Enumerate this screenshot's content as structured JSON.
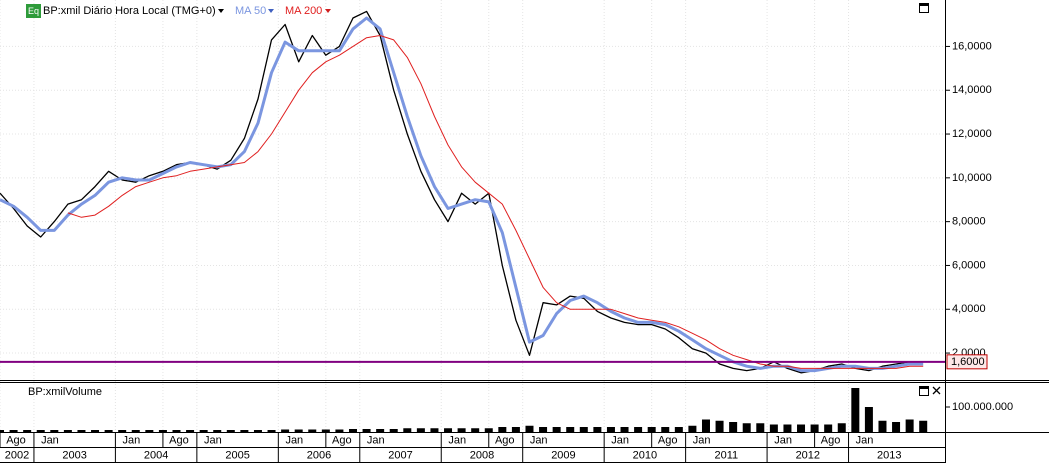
{
  "chart_data": {
    "type": "line",
    "title": "BP:xmil Diário Hora Local (TMG+0)",
    "badge": "Eq",
    "x": [
      "2002-08",
      "2002-10",
      "2002-12",
      "2003-02",
      "2003-04",
      "2003-06",
      "2003-08",
      "2003-10",
      "2003-12",
      "2004-02",
      "2004-04",
      "2004-06",
      "2004-08",
      "2004-10",
      "2004-12",
      "2005-02",
      "2005-04",
      "2005-06",
      "2005-08",
      "2005-10",
      "2005-12",
      "2006-02",
      "2006-04",
      "2006-06",
      "2006-08",
      "2006-10",
      "2006-12",
      "2007-02",
      "2007-04",
      "2007-06",
      "2007-08",
      "2007-10",
      "2007-12",
      "2008-02",
      "2008-04",
      "2008-06",
      "2008-08",
      "2008-10",
      "2008-12",
      "2009-02",
      "2009-04",
      "2009-06",
      "2009-08",
      "2009-10",
      "2009-12",
      "2010-02",
      "2010-04",
      "2010-06",
      "2010-08",
      "2010-10",
      "2010-12",
      "2011-02",
      "2011-04",
      "2011-06",
      "2011-08",
      "2011-10",
      "2011-12",
      "2012-02",
      "2012-04",
      "2012-06",
      "2012-08",
      "2012-10",
      "2012-12",
      "2013-02",
      "2013-04",
      "2013-06",
      "2013-08",
      "2013-10",
      "2013-12"
    ],
    "xlim": [
      "2002-08",
      "2014-01"
    ],
    "xticks": [
      {
        "value": "2002-08",
        "label": "Ago"
      },
      {
        "value": "2003-01",
        "label": "Jan"
      },
      {
        "value": "2004-01",
        "label": "Jan"
      },
      {
        "value": "2004-08",
        "label": "Ago"
      },
      {
        "value": "2005-01",
        "label": "Jan"
      },
      {
        "value": "2006-01",
        "label": "Jan"
      },
      {
        "value": "2006-08",
        "label": "Ago"
      },
      {
        "value": "2007-01",
        "label": "Jan"
      },
      {
        "value": "2008-01",
        "label": "Jan"
      },
      {
        "value": "2008-08",
        "label": "Ago"
      },
      {
        "value": "2009-01",
        "label": "Jan"
      },
      {
        "value": "2010-01",
        "label": "Jan"
      },
      {
        "value": "2010-08",
        "label": "Ago"
      },
      {
        "value": "2011-01",
        "label": "Jan"
      },
      {
        "value": "2012-01",
        "label": "Jan"
      },
      {
        "value": "2012-08",
        "label": "Ago"
      },
      {
        "value": "2013-01",
        "label": "Jan"
      }
    ],
    "year_labels": [
      "2002",
      "2003",
      "2004",
      "2005",
      "2006",
      "2007",
      "2008",
      "2009",
      "2010",
      "2011",
      "2012",
      "2013"
    ],
    "ylim": [
      0.77,
      18.12
    ],
    "yticks": [
      {
        "value": 2,
        "label": "2,0000"
      },
      {
        "value": 4,
        "label": "4,0000"
      },
      {
        "value": 6,
        "label": "6,0000"
      },
      {
        "value": 8,
        "label": "8,0000"
      },
      {
        "value": 10,
        "label": "10,0000"
      },
      {
        "value": 12,
        "label": "12,0000"
      },
      {
        "value": 14,
        "label": "14,0000"
      },
      {
        "value": 16,
        "label": "16,0000"
      }
    ],
    "grid": true,
    "series": [
      {
        "color": "#000000",
        "values": [
          9.3,
          8.6,
          7.8,
          7.3,
          8.0,
          8.8,
          9.0,
          9.6,
          10.3,
          9.9,
          9.8,
          10.1,
          10.3,
          10.6,
          10.7,
          10.6,
          10.4,
          10.8,
          11.8,
          13.6,
          16.3,
          17.0,
          15.3,
          16.5,
          15.6,
          16.0,
          17.3,
          17.6,
          16.5,
          14.0,
          12.0,
          10.3,
          9.0,
          8.0,
          9.3,
          8.8,
          9.3,
          6.0,
          3.5,
          1.9,
          4.3,
          4.2,
          4.6,
          4.5,
          3.9,
          3.6,
          3.4,
          3.3,
          3.3,
          3.1,
          2.7,
          2.2,
          2.0,
          1.5,
          1.3,
          1.2,
          1.3,
          1.6,
          1.3,
          1.1,
          1.2,
          1.4,
          1.5,
          1.3,
          1.2,
          1.4,
          1.5,
          1.6,
          1.6
        ]
      },
      {
        "name": "MA 50",
        "color": "#7b96e0",
        "values": [
          9.0,
          8.7,
          8.2,
          7.6,
          7.6,
          8.3,
          8.8,
          9.2,
          9.8,
          10.0,
          9.9,
          9.9,
          10.2,
          10.5,
          10.7,
          10.6,
          10.5,
          10.6,
          11.2,
          12.5,
          14.8,
          16.2,
          15.8,
          15.8,
          15.8,
          15.8,
          16.8,
          17.3,
          16.8,
          14.8,
          12.8,
          11.0,
          9.6,
          8.6,
          8.8,
          9.0,
          8.9,
          7.5,
          5.0,
          2.5,
          2.8,
          3.8,
          4.4,
          4.6,
          4.3,
          3.9,
          3.6,
          3.4,
          3.4,
          3.3,
          3.0,
          2.6,
          2.2,
          1.9,
          1.6,
          1.4,
          1.3,
          1.4,
          1.4,
          1.2,
          1.2,
          1.3,
          1.4,
          1.4,
          1.3,
          1.3,
          1.4,
          1.5,
          1.5
        ]
      },
      {
        "name": "MA 200",
        "color": "#e02020",
        "values": [
          null,
          null,
          null,
          null,
          null,
          8.4,
          8.2,
          8.3,
          8.7,
          9.2,
          9.6,
          9.8,
          10.0,
          10.1,
          10.3,
          10.4,
          10.5,
          10.6,
          10.7,
          11.2,
          12.0,
          13.0,
          14.0,
          14.8,
          15.3,
          15.6,
          16.0,
          16.4,
          16.5,
          16.3,
          15.5,
          14.3,
          12.8,
          11.5,
          10.5,
          9.8,
          9.3,
          8.8,
          7.6,
          6.3,
          5.0,
          4.3,
          4.0,
          4.0,
          4.0,
          4.0,
          3.8,
          3.6,
          3.5,
          3.4,
          3.2,
          2.9,
          2.6,
          2.2,
          1.9,
          1.7,
          1.5,
          1.4,
          1.4,
          1.3,
          1.3,
          1.3,
          1.3,
          1.3,
          1.3,
          1.3,
          1.3,
          1.4,
          1.4
        ]
      }
    ],
    "level": {
      "value": 1.6,
      "label": "1,6000",
      "color": "#800080"
    },
    "volume": {
      "title": "BP:xmilVolume",
      "color": "#000000",
      "ylim": [
        0,
        200000000
      ],
      "yticks": [
        {
          "value": 100000000,
          "label": "100.000.000"
        }
      ],
      "values": [
        8000000,
        8000000,
        8000000,
        8000000,
        8000000,
        8000000,
        8000000,
        8000000,
        8000000,
        8000000,
        8000000,
        8000000,
        8000000,
        8000000,
        8000000,
        8000000,
        8000000,
        8000000,
        8000000,
        8000000,
        8000000,
        10000000,
        10000000,
        10000000,
        10000000,
        10000000,
        12000000,
        12000000,
        12000000,
        12000000,
        15000000,
        15000000,
        15000000,
        15000000,
        15000000,
        15000000,
        15000000,
        20000000,
        20000000,
        25000000,
        20000000,
        20000000,
        20000000,
        20000000,
        20000000,
        20000000,
        20000000,
        20000000,
        20000000,
        20000000,
        20000000,
        25000000,
        50000000,
        45000000,
        40000000,
        35000000,
        35000000,
        30000000,
        30000000,
        30000000,
        30000000,
        30000000,
        35000000,
        176000000,
        100000000,
        45000000,
        40000000,
        50000000,
        45000000
      ]
    }
  }
}
